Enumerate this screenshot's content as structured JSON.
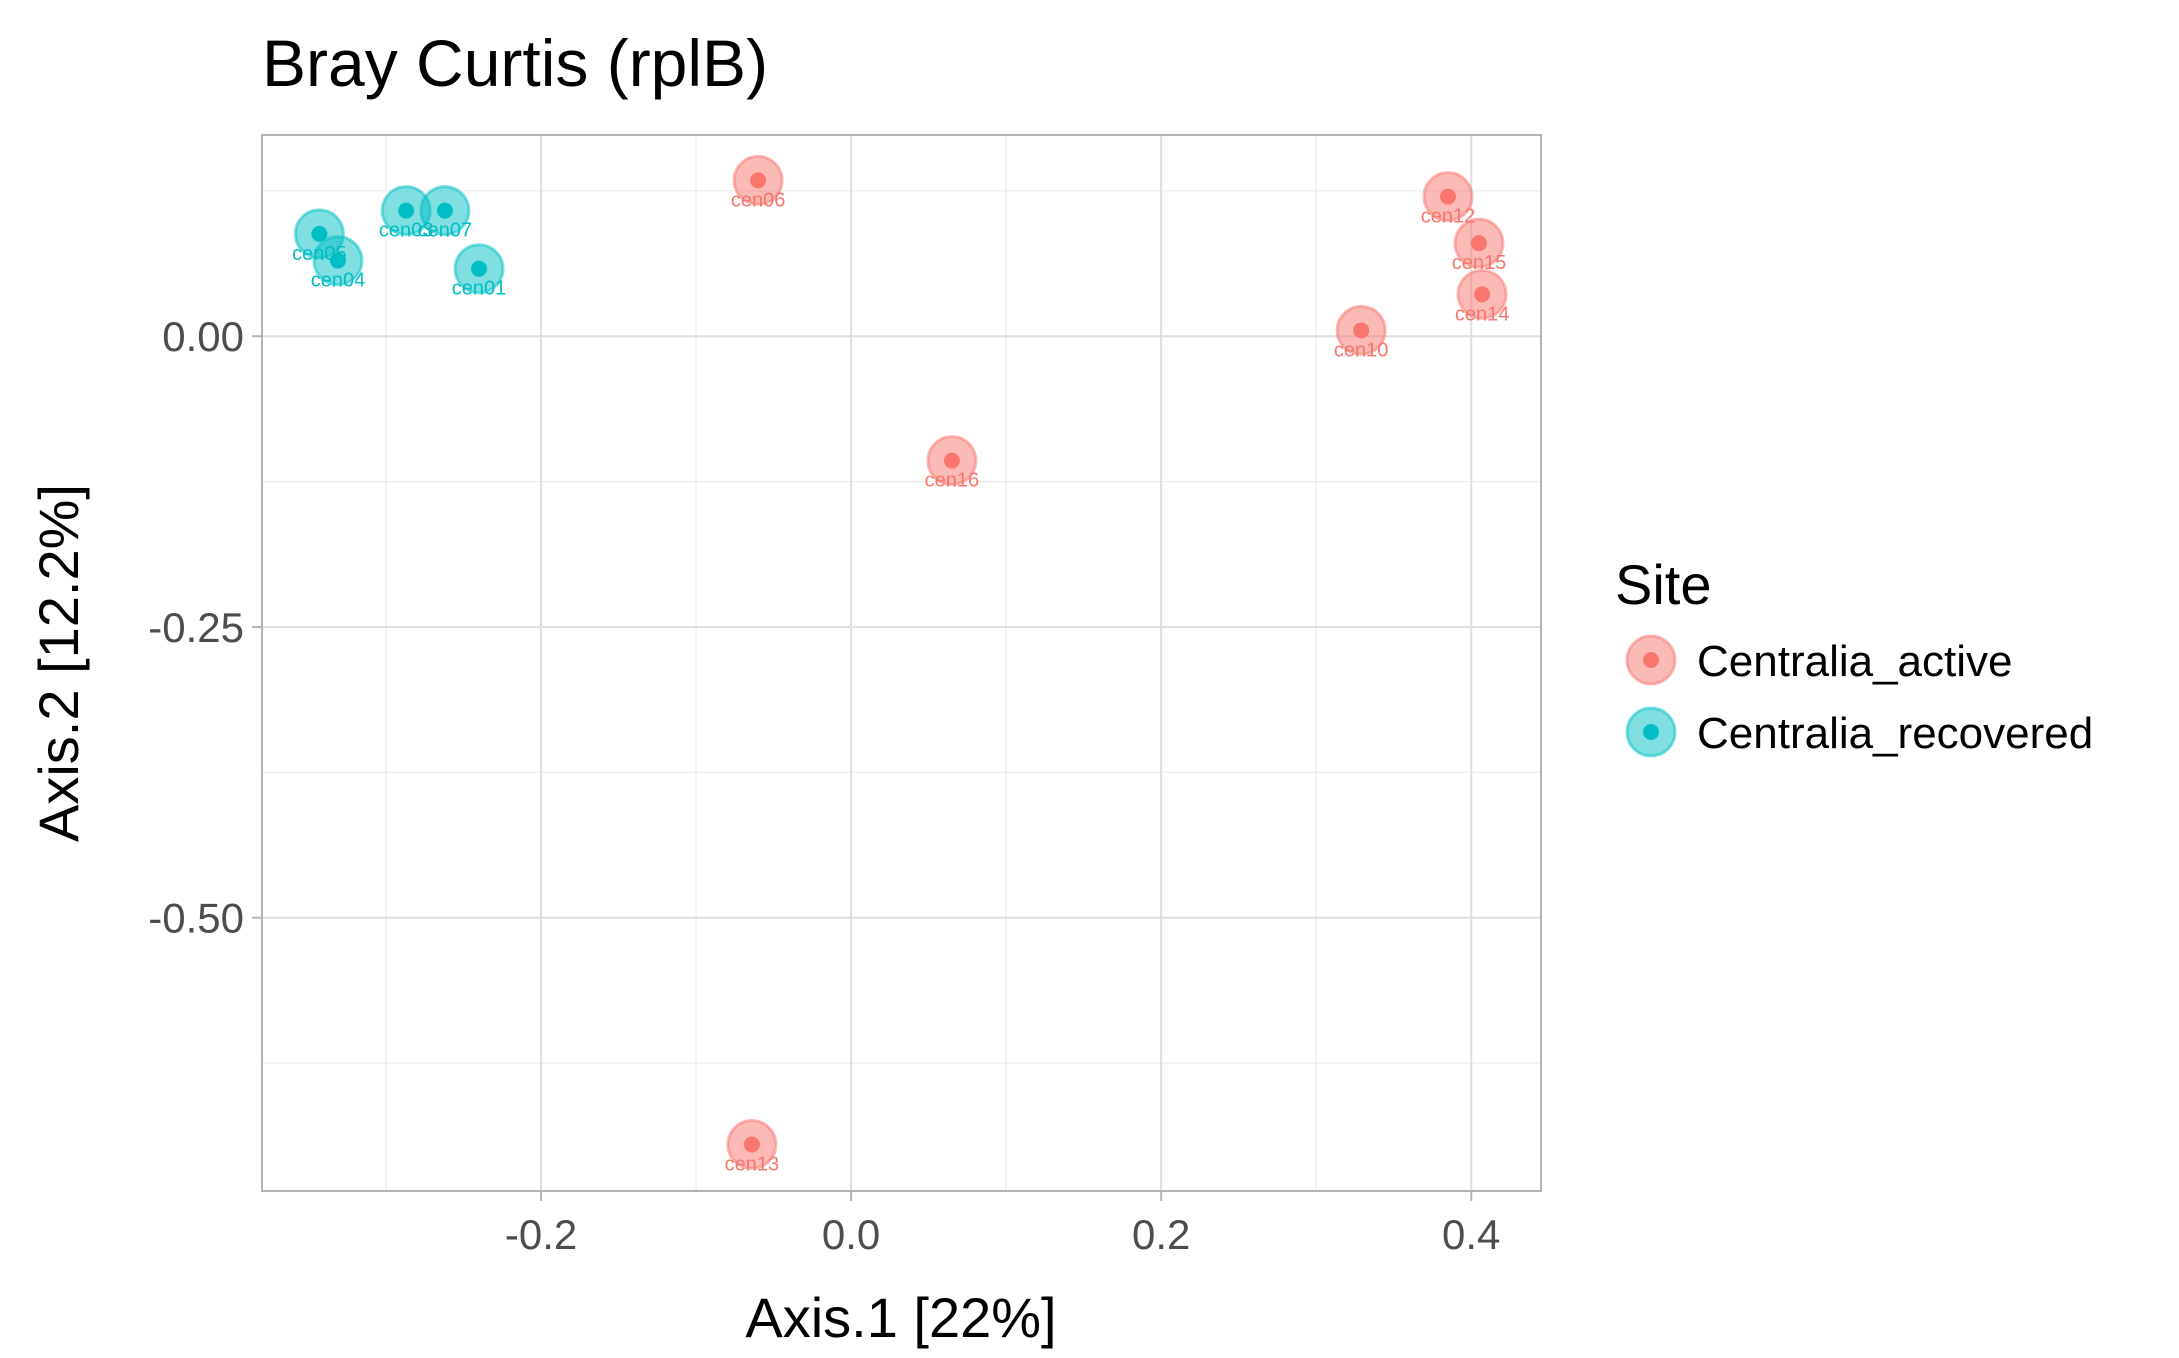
{
  "chart_data": {
    "type": "scatter",
    "title": "Bray Curtis (rplB)",
    "xlabel": "Axis.1   [22%]",
    "ylabel": "Axis.2   [12.2%]",
    "xlim": [
      -0.38,
      0.445
    ],
    "ylim": [
      -0.735,
      0.173
    ],
    "x_major_ticks": [
      -0.2,
      0.0,
      0.2,
      0.4
    ],
    "x_tick_labels": [
      "-0.2",
      "0.0",
      "0.2",
      "0.4"
    ],
    "x_minor_ticks": [
      -0.3,
      -0.1,
      0.1,
      0.3
    ],
    "y_major_ticks": [
      0.0,
      -0.25,
      -0.5
    ],
    "y_tick_labels": [
      "0.00",
      "-0.25",
      "-0.50"
    ],
    "y_minor_ticks": [
      0.125,
      -0.125,
      -0.375,
      -0.625
    ],
    "grid": true,
    "legend": {
      "title": "Site",
      "position": "right",
      "entries": [
        "Centralia_active",
        "Centralia_recovered"
      ]
    },
    "colors": {
      "Centralia_active": "#F8766D",
      "Centralia_recovered": "#00BFC4"
    },
    "series": [
      {
        "name": "Centralia_active",
        "points": [
          {
            "label": "cen06",
            "x": -0.06,
            "y": 0.134
          },
          {
            "label": "cen12",
            "x": 0.385,
            "y": 0.12
          },
          {
            "label": "cen15",
            "x": 0.405,
            "y": 0.08
          },
          {
            "label": "cen14",
            "x": 0.407,
            "y": 0.036
          },
          {
            "label": "cen10",
            "x": 0.329,
            "y": 0.005
          },
          {
            "label": "cen16",
            "x": 0.065,
            "y": -0.107
          },
          {
            "label": "cen13",
            "x": -0.064,
            "y": -0.695
          }
        ]
      },
      {
        "name": "Centralia_recovered",
        "points": [
          {
            "label": "cen05",
            "x": -0.343,
            "y": 0.088
          },
          {
            "label": "cen04",
            "x": -0.331,
            "y": 0.065
          },
          {
            "label": "cen03",
            "x": -0.287,
            "y": 0.108
          },
          {
            "label": "cen07",
            "x": -0.262,
            "y": 0.108
          },
          {
            "label": "cen01",
            "x": -0.24,
            "y": 0.058
          }
        ]
      }
    ]
  }
}
